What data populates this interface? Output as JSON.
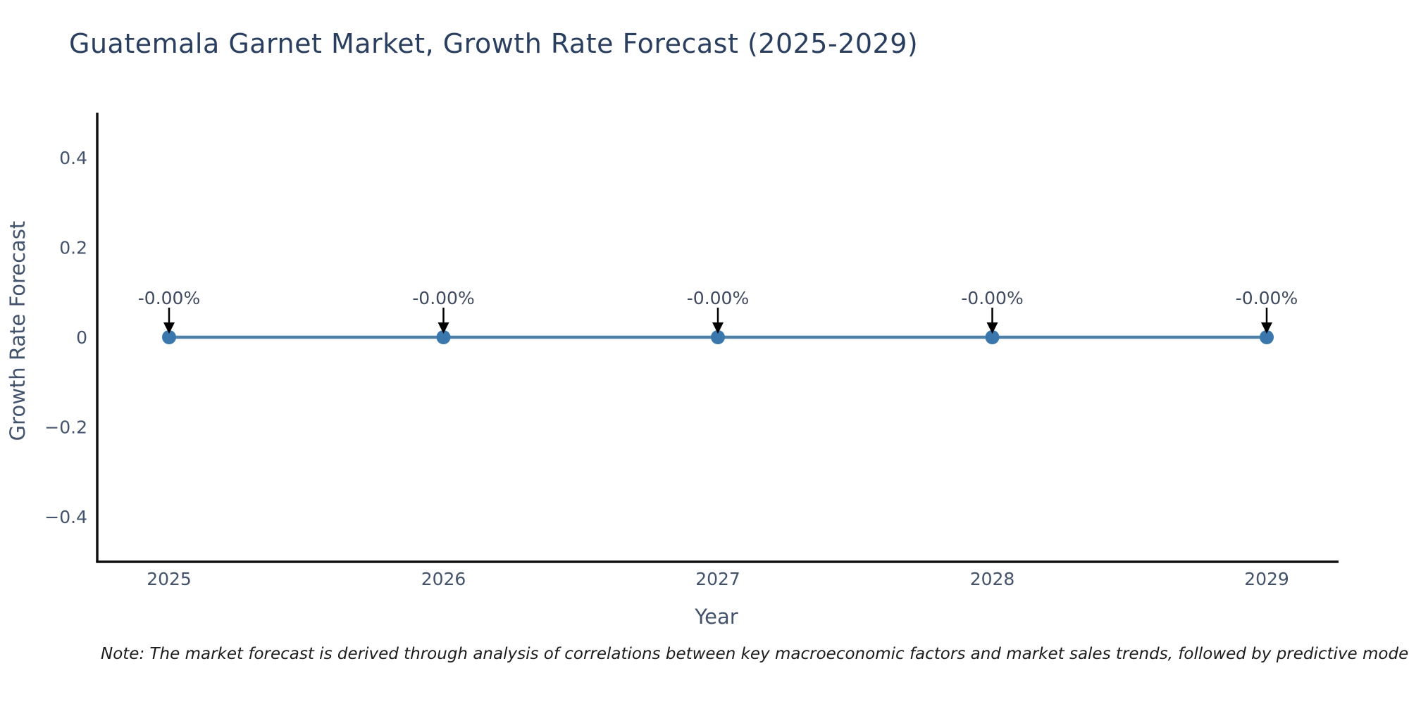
{
  "chart_data": {
    "type": "line",
    "title": "Guatemala Garnet Market, Growth Rate Forecast (2025-2029)",
    "xlabel": "Year",
    "ylabel": "Growth Rate Forecast",
    "x": [
      2025,
      2026,
      2027,
      2028,
      2029
    ],
    "y": [
      0,
      0,
      0,
      0,
      0
    ],
    "point_labels": [
      "-0.00%",
      "-0.00%",
      "-0.00%",
      "-0.00%",
      "-0.00%"
    ],
    "xticks": [
      "2025",
      "2026",
      "2027",
      "2028",
      "2029"
    ],
    "yticks": [
      0.4,
      0.2,
      0,
      -0.2,
      -0.4
    ],
    "ylim": [
      -0.5,
      0.5
    ],
    "grid": false,
    "legend": "none",
    "line_color": "#4f80a8",
    "marker_color": "#3a77ad",
    "arrow_color": "#000000"
  },
  "colors": {
    "title": "#2a3f5f",
    "tick_label": "#42536b",
    "axis_title": "#42536b",
    "annotation_text": "#3f4a5f",
    "axis_line": "#111111",
    "background": "#ffffff"
  },
  "note": {
    "text": "Note: The market forecast is derived through analysis of correlations between key macroeconomic factors and market sales trends, followed by predictive modeling to project future sales"
  }
}
